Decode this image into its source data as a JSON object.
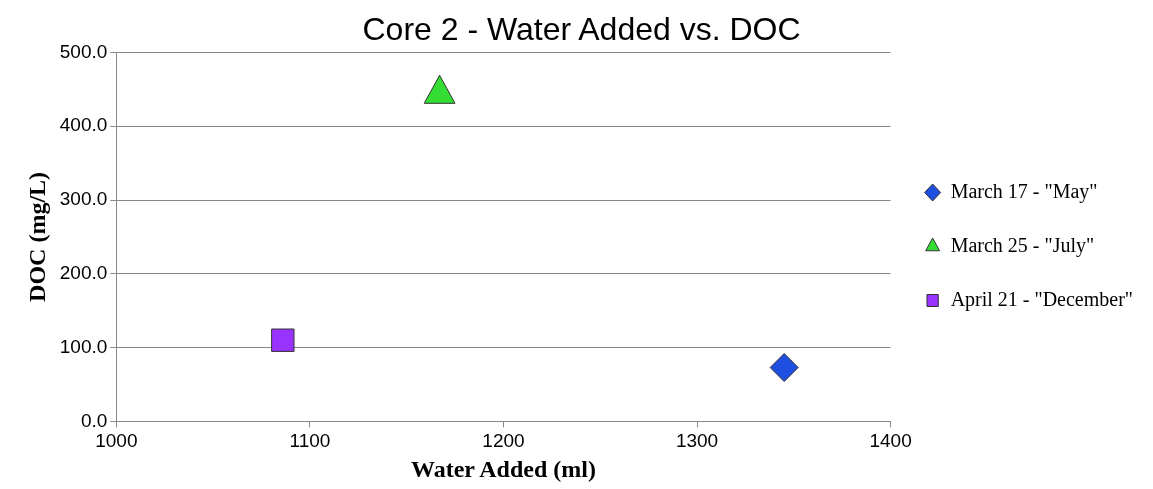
{
  "chart_data": {
    "type": "scatter",
    "title": "Core 2 - Water Added vs. DOC",
    "xlabel": "Water Added (ml)",
    "ylabel": "DOC (mg/L)",
    "series": [
      {
        "name": "March 17 - \"May\"",
        "color": "#1f4fe0",
        "x": [
          1345
        ],
        "values": [
          73
        ],
        "marker": "diamond"
      },
      {
        "name": "March 25 - \"July\"",
        "color": "#33dd33",
        "x": [
          1167
        ],
        "values": [
          450
        ],
        "marker": "triangle"
      },
      {
        "name": "April 21 - \"December\"",
        "color": "#9933ff",
        "x": [
          1086
        ],
        "values": [
          110
        ],
        "marker": "square"
      }
    ],
    "xlim": [
      1000,
      1400
    ],
    "xticks": [
      1000,
      1100,
      1200,
      1300,
      1400
    ],
    "ylim": [
      0,
      500
    ],
    "yticks": [
      {
        "value": 0,
        "label": "0.0"
      },
      {
        "value": 100,
        "label": "100.0"
      },
      {
        "value": 200,
        "label": "200.0"
      },
      {
        "value": 300,
        "label": "300.0"
      },
      {
        "value": 400,
        "label": "400.0"
      },
      {
        "value": 500,
        "label": "500.0"
      }
    ],
    "grid": "y",
    "legend": "right"
  }
}
